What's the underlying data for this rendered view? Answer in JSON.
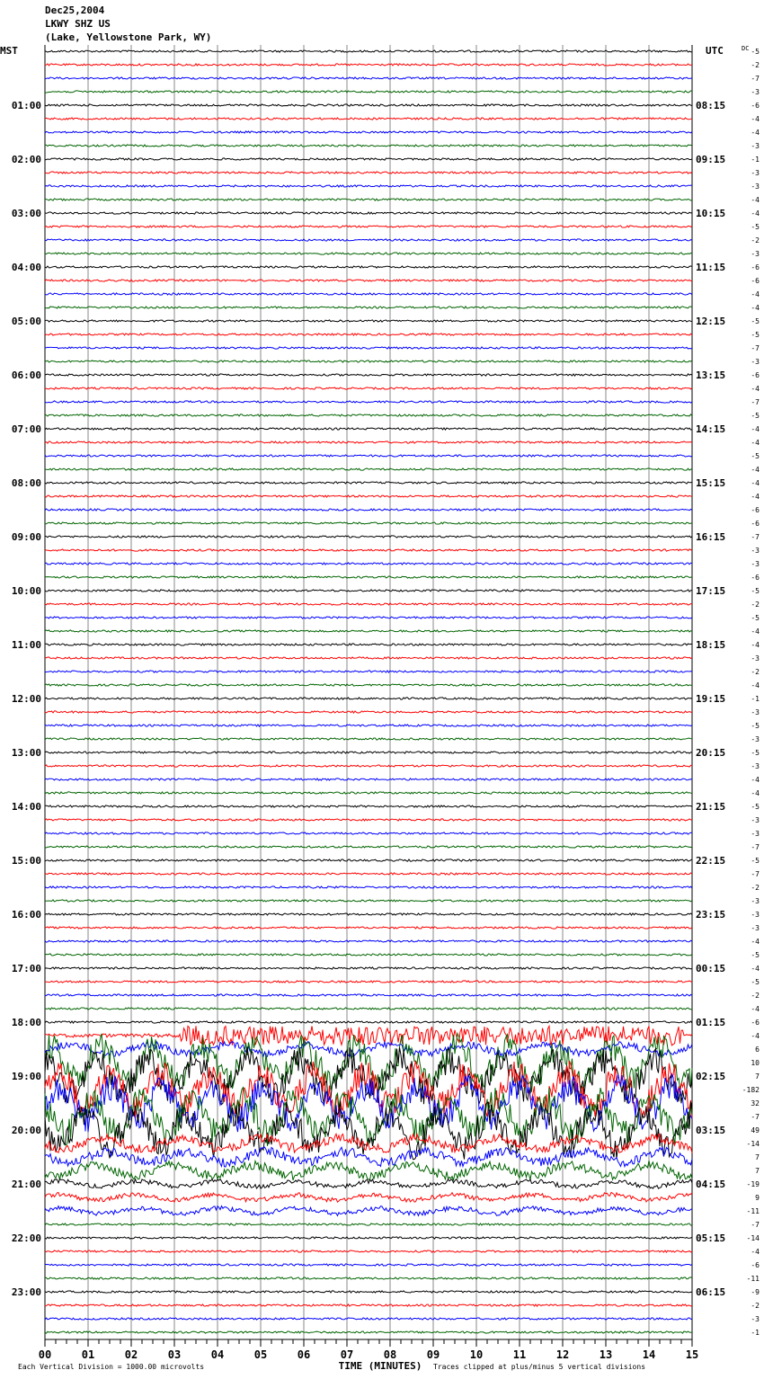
{
  "header": {
    "date": "Dec25,2004",
    "station": "LKWY SHZ US",
    "location": "(Lake, Yellowstone Park, WY)"
  },
  "chart_data": {
    "type": "line",
    "title": "LKWY SHZ US helicorder Dec25,2004",
    "left_axis_label": "MST",
    "right_axis_label": "UTC",
    "dc_label": "DC",
    "left_hour_labels": [
      "01:00",
      "02:00",
      "03:00",
      "04:00",
      "05:00",
      "06:00",
      "07:00",
      "08:00",
      "09:00",
      "10:00",
      "11:00",
      "12:00",
      "13:00",
      "14:00",
      "15:00",
      "16:00",
      "17:00",
      "18:00",
      "19:00",
      "20:00",
      "21:00",
      "22:00",
      "23:00"
    ],
    "right_hour_labels": [
      "08:15",
      "09:15",
      "10:15",
      "11:15",
      "12:15",
      "13:15",
      "14:15",
      "15:15",
      "16:15",
      "17:15",
      "18:15",
      "19:15",
      "20:15",
      "21:15",
      "22:15",
      "23:15",
      "00:15",
      "01:15",
      "02:15",
      "03:15",
      "04:15",
      "05:15",
      "06:15"
    ],
    "dc_offsets": [
      -5,
      -2,
      -7,
      -3,
      -6,
      -4,
      -4,
      -3,
      -1,
      -3,
      -3,
      -4,
      -4,
      -5,
      -2,
      -3,
      -6,
      -6,
      -4,
      -4,
      -5,
      -5,
      -7,
      -3,
      -6,
      -4,
      -7,
      -5,
      -4,
      -4,
      -5,
      -4,
      -4,
      -4,
      -6,
      -6,
      -7,
      -3,
      -3,
      -6,
      -5,
      -2,
      -5,
      -4,
      -4,
      -3,
      -2,
      -4,
      -1,
      -3,
      -5,
      -3,
      -5,
      -3,
      -4,
      -4,
      -5,
      -3,
      -3,
      -7,
      -5,
      -7,
      -2,
      -3,
      -3,
      -3,
      -4,
      -5,
      -4,
      -5,
      -2,
      -4,
      -6,
      -4,
      6,
      10,
      7,
      -182,
      32,
      -7,
      49,
      -14,
      7,
      7,
      -19,
      9,
      -11,
      -7,
      -14,
      -4,
      -6,
      -11,
      -9,
      -2,
      -3,
      -1
    ],
    "trace_colors": [
      "#000000",
      "#ff0000",
      "#0000ff",
      "#006400"
    ],
    "x_ticks": [
      "00",
      "01",
      "02",
      "03",
      "04",
      "05",
      "06",
      "07",
      "08",
      "09",
      "10",
      "11",
      "12",
      "13",
      "14",
      "15"
    ],
    "xlabel": "TIME (MINUTES)",
    "xlim": [
      0,
      15
    ],
    "scale_note": "Each Vertical Division = 1000.00 microvolts",
    "clip_note": "Traces clipped at plus/minus 5 vertical divisions"
  }
}
